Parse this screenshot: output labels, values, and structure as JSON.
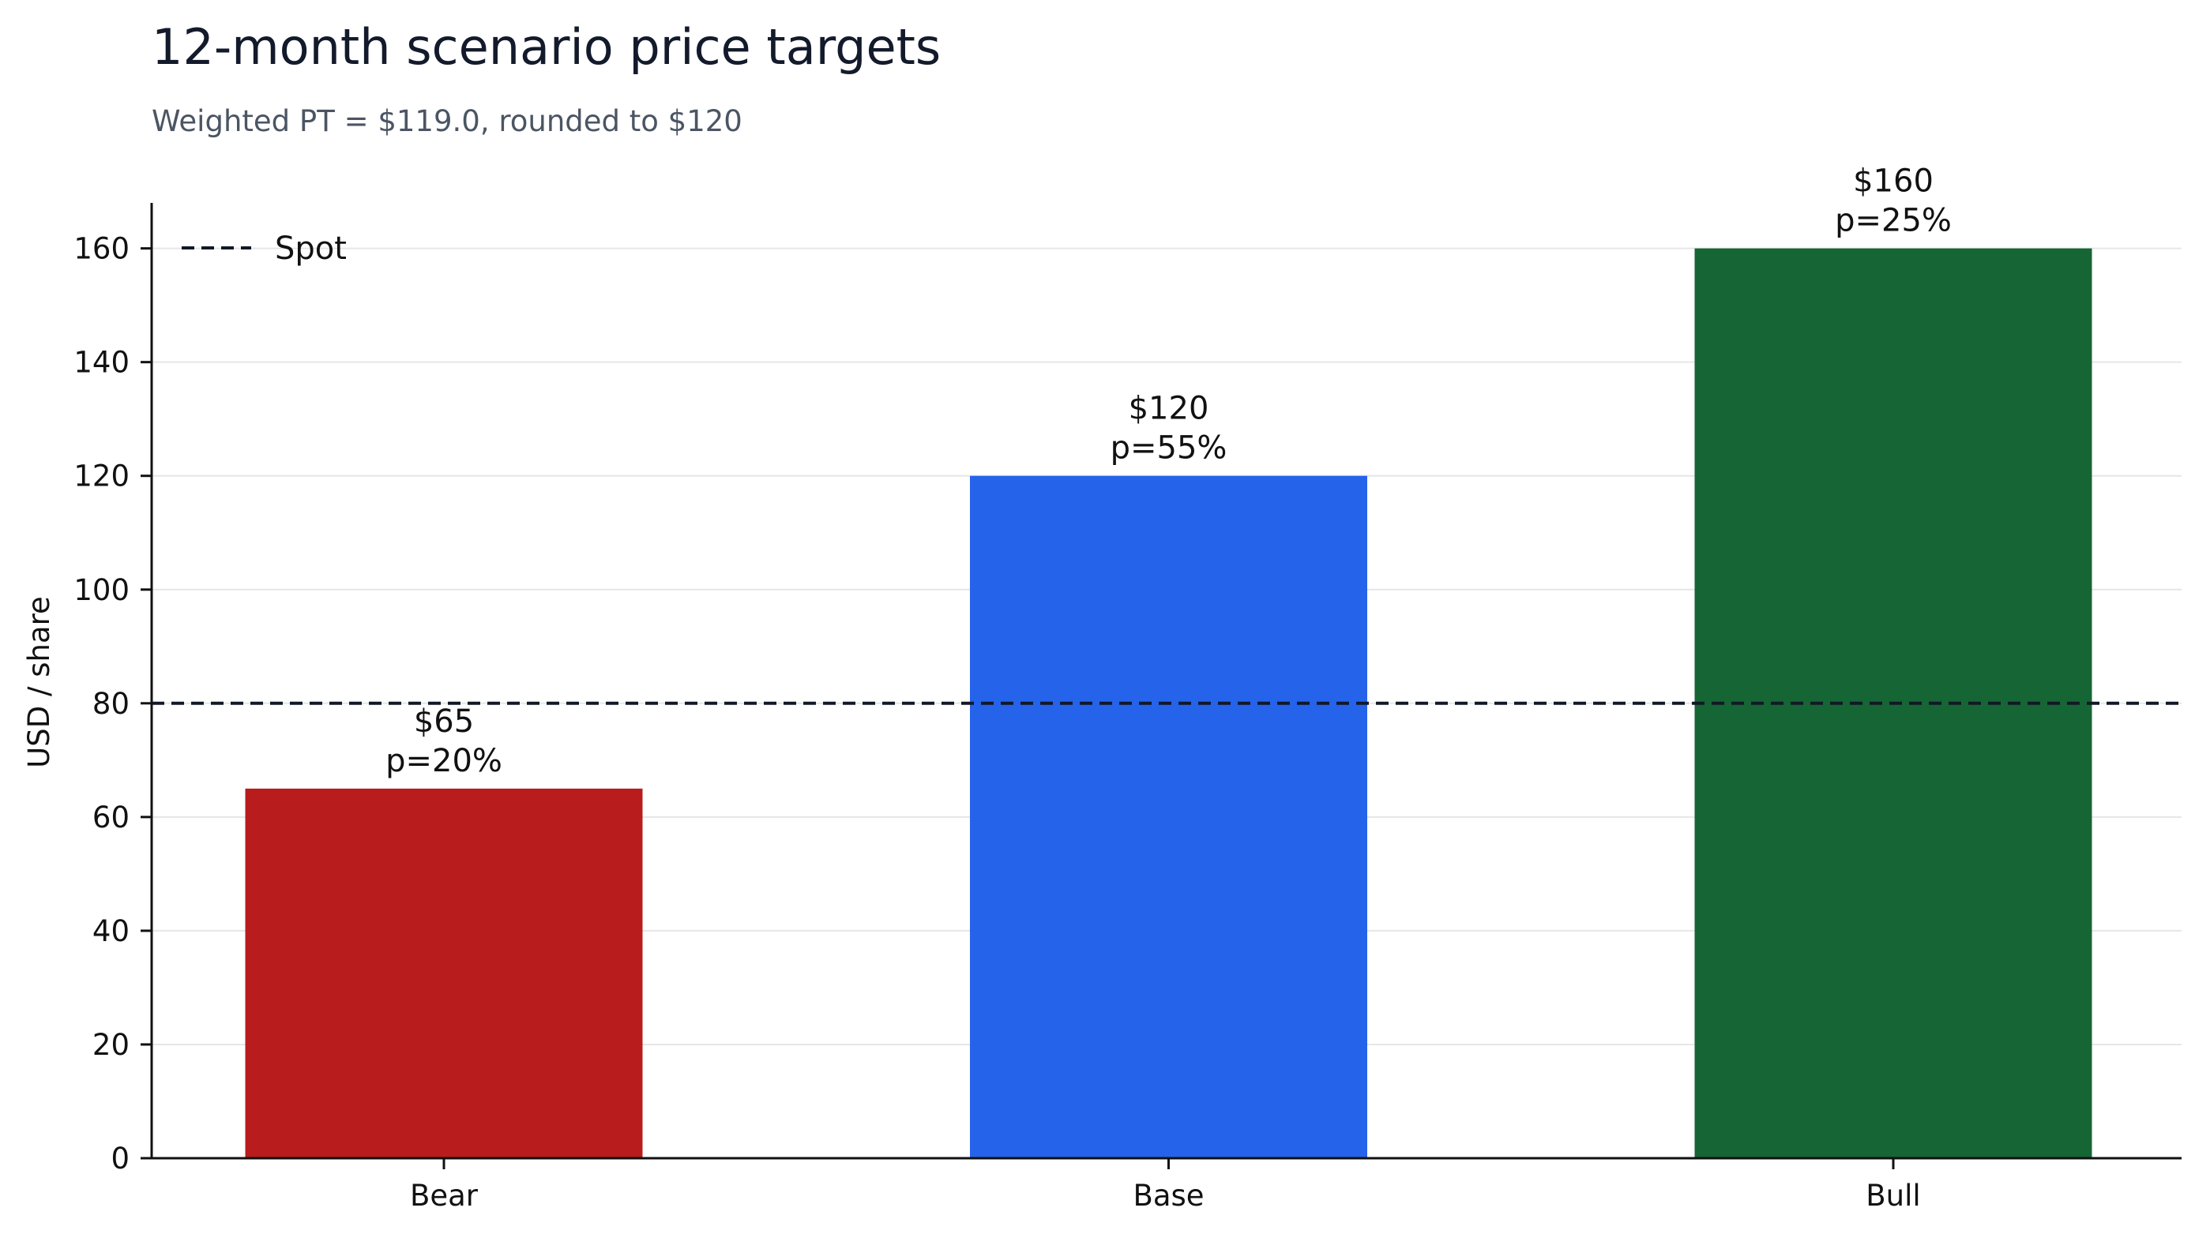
{
  "chart_data": {
    "type": "bar",
    "title": "12-month scenario price targets",
    "subtitle": "Weighted PT = $119.0, rounded to $120",
    "xlabel": "",
    "ylabel": "USD / share",
    "ylim": [
      0,
      168
    ],
    "yticks": [
      0,
      20,
      40,
      60,
      80,
      100,
      120,
      140,
      160
    ],
    "grid": "horizontal",
    "legend_position": "top-left",
    "categories": [
      "Bear",
      "Base",
      "Bull"
    ],
    "values": [
      65,
      120,
      160
    ],
    "colors": [
      "#b91c1c",
      "#2563eb",
      "#166534"
    ],
    "data_labels": [
      {
        "price": "$65",
        "prob": "p=20%"
      },
      {
        "price": "$120",
        "prob": "p=55%"
      },
      {
        "price": "$160",
        "prob": "p=25%"
      }
    ],
    "reference_lines": [
      {
        "name": "Spot",
        "value": 80,
        "style": "dashed",
        "color": "#111827"
      }
    ]
  }
}
